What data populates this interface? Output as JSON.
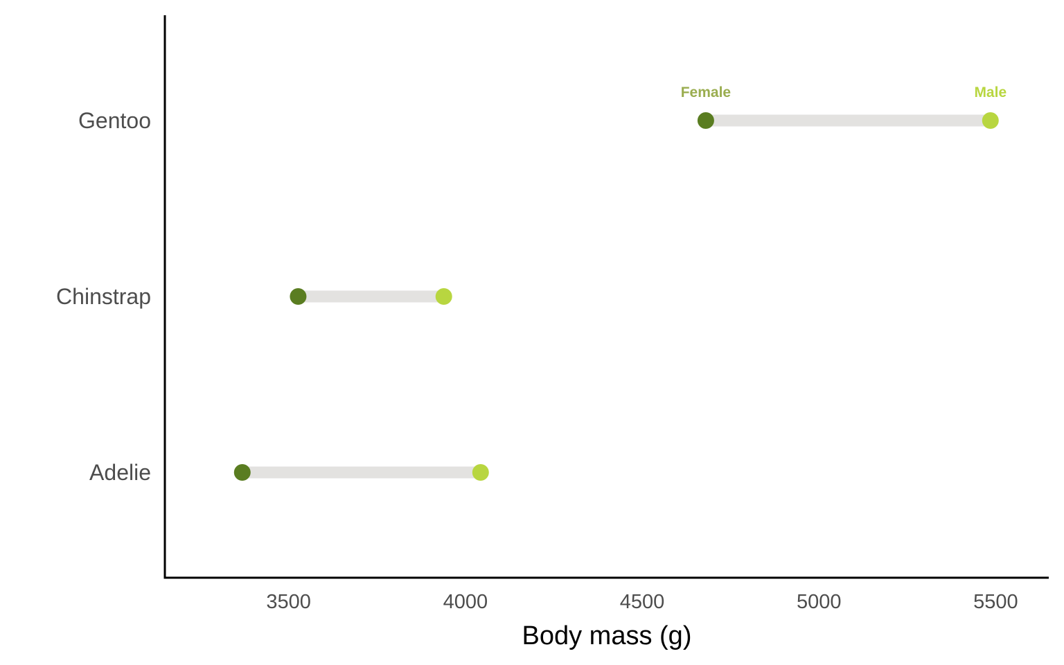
{
  "chart_data": {
    "type": "dumbbell",
    "xlabel": "Body mass (g)",
    "ylabel": "",
    "xlim": [
      3150,
      5650
    ],
    "x_ticks": [
      3500,
      4000,
      4500,
      5000,
      5500
    ],
    "categories": [
      "Gentoo",
      "Chinstrap",
      "Adelie"
    ],
    "series": [
      {
        "name": "Female",
        "color": "#5a7d21",
        "label_color": "#9aad4f",
        "values": [
          4680,
          3527,
          3369
        ]
      },
      {
        "name": "Male",
        "color": "#b8d640",
        "label_color": "#b8d640",
        "values": [
          5485,
          3939,
          4043
        ]
      }
    ],
    "labeled_category": "Gentoo",
    "segment_color": "#e3e2e0",
    "grid": false
  }
}
